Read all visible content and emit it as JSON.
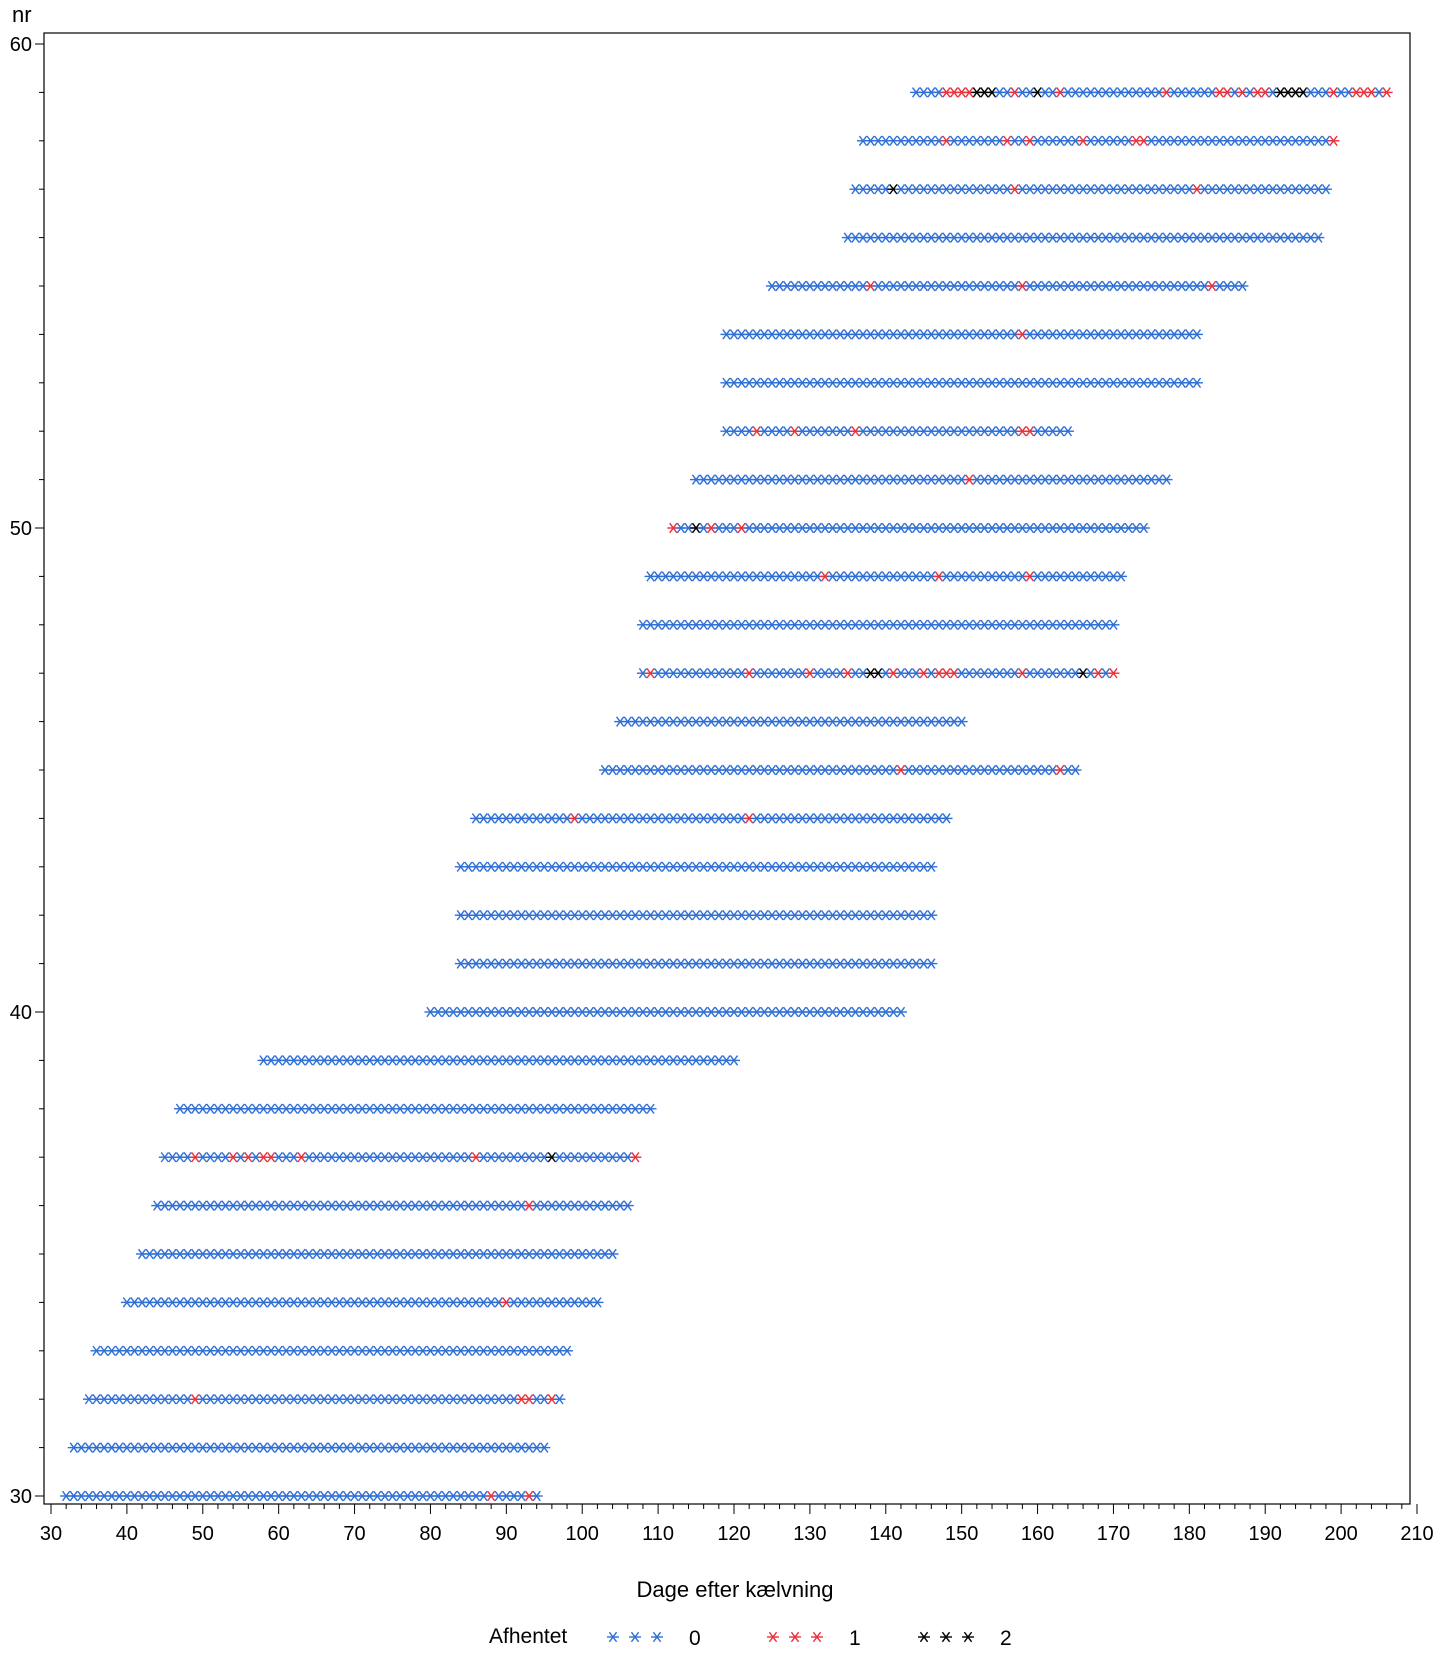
{
  "chart_data": {
    "type": "scatter",
    "marker": "asterisk",
    "ylabel": "nr",
    "xlabel": "Dage efter kælvning",
    "xlim": [
      30,
      210
    ],
    "ylim": [
      30,
      60
    ],
    "x_ticks": [
      30,
      40,
      50,
      60,
      70,
      80,
      90,
      100,
      110,
      120,
      130,
      140,
      150,
      160,
      170,
      180,
      190,
      200,
      210
    ],
    "y_tick_labels": [
      30,
      40,
      50,
      60
    ],
    "grid": false,
    "legend": {
      "title": "Afhentet",
      "position": "bottom",
      "entries": [
        {
          "label": "0",
          "color": "#2f6fd6"
        },
        {
          "label": "1",
          "color": "#e8323c"
        },
        {
          "label": "2",
          "color": "#000000"
        }
      ]
    },
    "series_note_default_category": "0",
    "rows": [
      {
        "nr": 30,
        "x_start": 32,
        "x_end": 94,
        "cat1": [
          88,
          93
        ],
        "cat2": []
      },
      {
        "nr": 31,
        "x_start": 33,
        "x_end": 95,
        "cat1": [],
        "cat2": []
      },
      {
        "nr": 32,
        "x_start": 35,
        "x_end": 97,
        "cat1": [
          49,
          92,
          93,
          96
        ],
        "cat2": []
      },
      {
        "nr": 33,
        "x_start": 36,
        "x_end": 98,
        "cat1": [],
        "cat2": []
      },
      {
        "nr": 34,
        "x_start": 40,
        "x_end": 102,
        "cat1": [
          90
        ],
        "cat2": []
      },
      {
        "nr": 35,
        "x_start": 42,
        "x_end": 104,
        "cat1": [],
        "cat2": []
      },
      {
        "nr": 36,
        "x_start": 44,
        "x_end": 106,
        "cat1": [
          93
        ],
        "cat2": []
      },
      {
        "nr": 37,
        "x_start": 45,
        "x_end": 107,
        "cat1": [
          49,
          54,
          56,
          58,
          59,
          63,
          86,
          107
        ],
        "cat2": [
          96
        ]
      },
      {
        "nr": 38,
        "x_start": 47,
        "x_end": 109,
        "cat1": [],
        "cat2": []
      },
      {
        "nr": 39,
        "x_start": 58,
        "x_end": 120,
        "cat1": [],
        "cat2": []
      },
      {
        "nr": 40,
        "x_start": 80,
        "x_end": 142,
        "cat1": [],
        "cat2": []
      },
      {
        "nr": 41,
        "x_start": 84,
        "x_end": 146,
        "cat1": [],
        "cat2": []
      },
      {
        "nr": 42,
        "x_start": 84,
        "x_end": 146,
        "cat1": [],
        "cat2": []
      },
      {
        "nr": 43,
        "x_start": 84,
        "x_end": 146,
        "cat1": [],
        "cat2": []
      },
      {
        "nr": 44,
        "x_start": 86,
        "x_end": 148,
        "cat1": [
          99,
          122
        ],
        "cat2": []
      },
      {
        "nr": 45,
        "x_start": 103,
        "x_end": 165,
        "cat1": [
          142,
          163
        ],
        "cat2": []
      },
      {
        "nr": 46,
        "x_start": 105,
        "x_end": 150,
        "cat1": [],
        "cat2": []
      },
      {
        "nr": 47,
        "x_start": 108,
        "x_end": 170,
        "cat1": [
          109,
          122,
          130,
          135,
          141,
          145,
          147,
          148,
          149,
          158,
          168,
          170
        ],
        "cat2": [
          138,
          139,
          166
        ]
      },
      {
        "nr": 48,
        "x_start": 108,
        "x_end": 170,
        "cat1": [],
        "cat2": []
      },
      {
        "nr": 49,
        "x_start": 109,
        "x_end": 171,
        "cat1": [
          132,
          147,
          159
        ],
        "cat2": []
      },
      {
        "nr": 50,
        "x_start": 112,
        "x_end": 174,
        "cat1": [
          112,
          117,
          121
        ],
        "cat2": [
          115
        ]
      },
      {
        "nr": 51,
        "x_start": 115,
        "x_end": 177,
        "cat1": [
          151
        ],
        "cat2": []
      },
      {
        "nr": 52,
        "x_start": 119,
        "x_end": 164,
        "cat1": [
          123,
          128,
          136,
          158,
          159
        ],
        "cat2": []
      },
      {
        "nr": 53,
        "x_start": 119,
        "x_end": 181,
        "cat1": [],
        "cat2": []
      },
      {
        "nr": 54,
        "x_start": 119,
        "x_end": 181,
        "cat1": [
          158
        ],
        "cat2": []
      },
      {
        "nr": 55,
        "x_start": 125,
        "x_end": 187,
        "cat1": [
          138,
          158,
          183
        ],
        "cat2": []
      },
      {
        "nr": 56,
        "x_start": 135,
        "x_end": 197,
        "cat1": [],
        "cat2": []
      },
      {
        "nr": 57,
        "x_start": 136,
        "x_end": 198,
        "cat1": [
          157,
          181
        ],
        "cat2": [
          141
        ]
      },
      {
        "nr": 58,
        "x_start": 137,
        "x_end": 199,
        "cat1": [
          148,
          156,
          159,
          166,
          173,
          174,
          199
        ],
        "cat2": []
      },
      {
        "nr": 59,
        "x_start": 144,
        "x_end": 206,
        "cat1": [
          148,
          149,
          150,
          151,
          157,
          163,
          177,
          184,
          185,
          187,
          189,
          190,
          199,
          202,
          203,
          204,
          206
        ],
        "cat2": [
          152,
          153,
          154,
          160,
          192,
          193,
          194,
          195
        ]
      }
    ]
  }
}
